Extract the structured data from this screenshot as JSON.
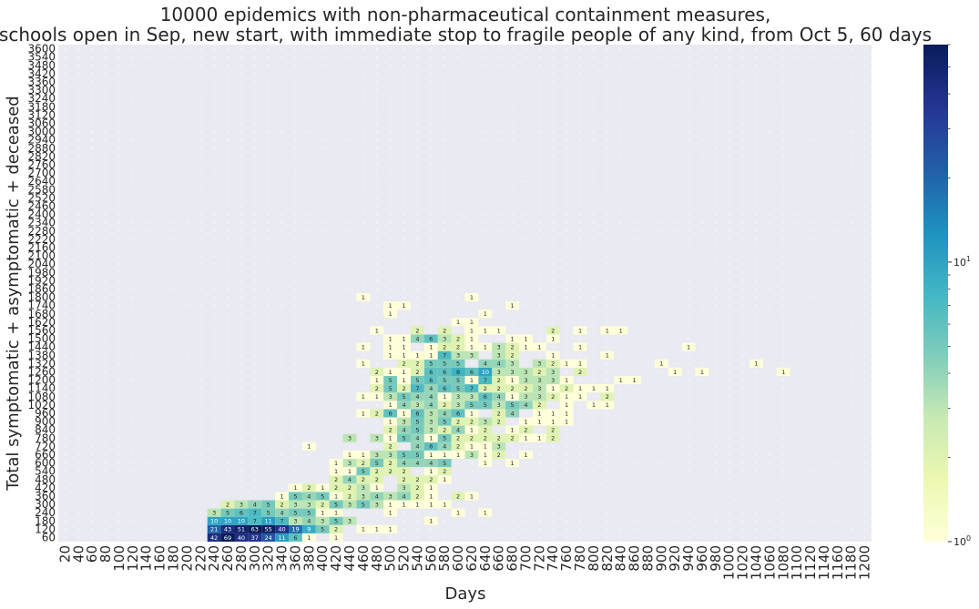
{
  "chart_data": {
    "type": "heatmap",
    "title_lines": [
      "10000 epidemics with non-pharmaceutical containment measures,",
      "schools open in Sep, new start, with immediate stop to fragile people of any kind, from Oct 5, 60 days"
    ],
    "xlabel": "Days",
    "ylabel": "Total symptomatic + asymptomatic + deceased",
    "x_start": 20,
    "x_step": 20,
    "x_count": 60,
    "y_start": 60,
    "y_step": 60,
    "y_count": 60,
    "colormap": "YlGnBu",
    "color_scale": "log",
    "colorbar_ticks": [
      {
        "base": "10",
        "exp": "0",
        "value": 1
      },
      {
        "base": "10",
        "exp": "1",
        "value": 10
      }
    ],
    "colorbar_max": 60,
    "background_color": "#eaeaf2",
    "cells": [
      [
        240,
        60,
        42
      ],
      [
        260,
        60,
        69
      ],
      [
        280,
        60,
        40
      ],
      [
        300,
        60,
        37
      ],
      [
        320,
        60,
        24
      ],
      [
        340,
        60,
        11
      ],
      [
        360,
        60,
        6
      ],
      [
        380,
        60,
        1
      ],
      [
        420,
        60,
        1
      ],
      [
        240,
        120,
        21
      ],
      [
        260,
        120,
        43
      ],
      [
        280,
        120,
        51
      ],
      [
        300,
        120,
        63
      ],
      [
        320,
        120,
        55
      ],
      [
        340,
        120,
        40
      ],
      [
        360,
        120,
        19
      ],
      [
        380,
        120,
        9
      ],
      [
        400,
        120,
        5
      ],
      [
        420,
        120,
        2
      ],
      [
        460,
        120,
        1
      ],
      [
        480,
        120,
        1
      ],
      [
        500,
        120,
        1
      ],
      [
        240,
        180,
        10
      ],
      [
        260,
        180,
        10
      ],
      [
        280,
        180,
        10
      ],
      [
        300,
        180,
        7
      ],
      [
        320,
        180,
        11
      ],
      [
        340,
        180,
        7
      ],
      [
        360,
        180,
        3
      ],
      [
        380,
        180,
        4
      ],
      [
        400,
        180,
        3
      ],
      [
        420,
        180,
        5
      ],
      [
        440,
        180,
        3
      ],
      [
        560,
        180,
        1
      ],
      [
        240,
        240,
        3
      ],
      [
        260,
        240,
        5
      ],
      [
        280,
        240,
        6
      ],
      [
        300,
        240,
        7
      ],
      [
        320,
        240,
        5
      ],
      [
        340,
        240,
        4
      ],
      [
        360,
        240,
        5
      ],
      [
        380,
        240,
        5
      ],
      [
        400,
        240,
        1
      ],
      [
        420,
        240,
        1
      ],
      [
        500,
        240,
        1
      ],
      [
        600,
        240,
        1
      ],
      [
        640,
        240,
        1
      ],
      [
        260,
        300,
        2
      ],
      [
        280,
        300,
        3
      ],
      [
        300,
        300,
        4
      ],
      [
        320,
        300,
        5
      ],
      [
        340,
        300,
        2
      ],
      [
        360,
        300,
        3
      ],
      [
        380,
        300,
        3
      ],
      [
        400,
        300,
        2
      ],
      [
        420,
        300,
        5
      ],
      [
        440,
        300,
        3
      ],
      [
        460,
        300,
        5
      ],
      [
        480,
        300,
        3
      ],
      [
        500,
        300,
        1
      ],
      [
        520,
        300,
        1
      ],
      [
        540,
        300,
        1
      ],
      [
        560,
        300,
        1
      ],
      [
        580,
        300,
        1
      ],
      [
        340,
        360,
        1
      ],
      [
        360,
        360,
        5
      ],
      [
        380,
        360,
        4
      ],
      [
        400,
        360,
        5
      ],
      [
        420,
        360,
        1
      ],
      [
        440,
        360,
        2
      ],
      [
        460,
        360,
        3
      ],
      [
        480,
        360,
        4
      ],
      [
        500,
        360,
        3
      ],
      [
        520,
        360,
        4
      ],
      [
        540,
        360,
        2
      ],
      [
        560,
        360,
        1
      ],
      [
        600,
        360,
        2
      ],
      [
        620,
        360,
        1
      ],
      [
        360,
        420,
        1
      ],
      [
        380,
        420,
        2
      ],
      [
        400,
        420,
        1
      ],
      [
        420,
        420,
        2
      ],
      [
        440,
        420,
        2
      ],
      [
        460,
        420,
        3
      ],
      [
        480,
        420,
        1
      ],
      [
        520,
        420,
        3
      ],
      [
        540,
        420,
        2
      ],
      [
        560,
        420,
        1
      ],
      [
        420,
        480,
        2
      ],
      [
        440,
        480,
        4
      ],
      [
        460,
        480,
        2
      ],
      [
        480,
        480,
        2
      ],
      [
        520,
        480,
        2
      ],
      [
        540,
        480,
        2
      ],
      [
        560,
        480,
        2
      ],
      [
        580,
        480,
        1
      ],
      [
        420,
        540,
        1
      ],
      [
        440,
        540,
        1
      ],
      [
        460,
        540,
        5
      ],
      [
        480,
        540,
        2
      ],
      [
        500,
        540,
        2
      ],
      [
        520,
        540,
        2
      ],
      [
        560,
        540,
        1
      ],
      [
        580,
        540,
        2
      ],
      [
        420,
        600,
        1
      ],
      [
        440,
        600,
        3
      ],
      [
        460,
        600,
        2
      ],
      [
        480,
        600,
        5
      ],
      [
        500,
        600,
        2
      ],
      [
        520,
        600,
        4
      ],
      [
        540,
        600,
        4
      ],
      [
        560,
        600,
        4
      ],
      [
        580,
        600,
        5
      ],
      [
        640,
        600,
        1
      ],
      [
        680,
        600,
        1
      ],
      [
        440,
        660,
        1
      ],
      [
        460,
        660,
        1
      ],
      [
        480,
        660,
        3
      ],
      [
        500,
        660,
        3
      ],
      [
        520,
        660,
        5
      ],
      [
        540,
        660,
        5
      ],
      [
        560,
        660,
        1
      ],
      [
        580,
        660,
        1
      ],
      [
        600,
        660,
        1
      ],
      [
        620,
        660,
        3
      ],
      [
        640,
        660,
        1
      ],
      [
        660,
        660,
        2
      ],
      [
        700,
        660,
        1
      ],
      [
        380,
        720,
        1
      ],
      [
        500,
        720,
        2
      ],
      [
        540,
        720,
        4
      ],
      [
        560,
        720,
        6
      ],
      [
        580,
        720,
        4
      ],
      [
        600,
        720,
        2
      ],
      [
        620,
        720,
        1
      ],
      [
        640,
        720,
        1
      ],
      [
        660,
        720,
        3
      ],
      [
        440,
        780,
        3
      ],
      [
        480,
        780,
        3
      ],
      [
        500,
        780,
        1
      ],
      [
        520,
        780,
        5
      ],
      [
        540,
        780,
        4
      ],
      [
        560,
        780,
        1
      ],
      [
        580,
        780,
        5
      ],
      [
        600,
        780,
        2
      ],
      [
        620,
        780,
        2
      ],
      [
        640,
        780,
        2
      ],
      [
        660,
        780,
        2
      ],
      [
        680,
        780,
        2
      ],
      [
        700,
        780,
        1
      ],
      [
        720,
        780,
        1
      ],
      [
        740,
        780,
        2
      ],
      [
        500,
        840,
        2
      ],
      [
        520,
        840,
        4
      ],
      [
        540,
        840,
        5
      ],
      [
        560,
        840,
        3
      ],
      [
        580,
        840,
        2
      ],
      [
        600,
        840,
        4
      ],
      [
        620,
        840,
        1
      ],
      [
        640,
        840,
        2
      ],
      [
        680,
        840,
        1
      ],
      [
        700,
        840,
        2
      ],
      [
        740,
        840,
        2
      ],
      [
        500,
        900,
        1
      ],
      [
        520,
        900,
        3
      ],
      [
        540,
        900,
        5
      ],
      [
        560,
        900,
        3
      ],
      [
        580,
        900,
        5
      ],
      [
        600,
        900,
        2
      ],
      [
        620,
        900,
        2
      ],
      [
        640,
        900,
        3
      ],
      [
        660,
        900,
        2
      ],
      [
        700,
        900,
        1
      ],
      [
        720,
        900,
        1
      ],
      [
        740,
        900,
        1
      ],
      [
        760,
        900,
        1
      ],
      [
        460,
        960,
        1
      ],
      [
        480,
        960,
        2
      ],
      [
        500,
        960,
        6
      ],
      [
        520,
        960,
        1
      ],
      [
        540,
        960,
        6
      ],
      [
        560,
        960,
        3
      ],
      [
        580,
        960,
        4
      ],
      [
        600,
        960,
        6
      ],
      [
        620,
        960,
        1
      ],
      [
        660,
        960,
        2
      ],
      [
        680,
        960,
        4
      ],
      [
        720,
        960,
        1
      ],
      [
        740,
        960,
        1
      ],
      [
        760,
        960,
        1
      ],
      [
        500,
        1020,
        1
      ],
      [
        520,
        1020,
        4
      ],
      [
        540,
        1020,
        3
      ],
      [
        560,
        1020,
        4
      ],
      [
        580,
        1020,
        2
      ],
      [
        600,
        1020,
        3
      ],
      [
        620,
        1020,
        5
      ],
      [
        640,
        1020,
        5
      ],
      [
        660,
        1020,
        3
      ],
      [
        680,
        1020,
        5
      ],
      [
        700,
        1020,
        4
      ],
      [
        720,
        1020,
        2
      ],
      [
        760,
        1020,
        1
      ],
      [
        800,
        1020,
        1
      ],
      [
        820,
        1020,
        1
      ],
      [
        460,
        1080,
        1
      ],
      [
        480,
        1080,
        1
      ],
      [
        500,
        1080,
        3
      ],
      [
        520,
        1080,
        5
      ],
      [
        540,
        1080,
        4
      ],
      [
        560,
        1080,
        4
      ],
      [
        580,
        1080,
        1
      ],
      [
        600,
        1080,
        3
      ],
      [
        620,
        1080,
        3
      ],
      [
        640,
        1080,
        6
      ],
      [
        660,
        1080,
        4
      ],
      [
        680,
        1080,
        1
      ],
      [
        700,
        1080,
        3
      ],
      [
        720,
        1080,
        3
      ],
      [
        740,
        1080,
        2
      ],
      [
        760,
        1080,
        1
      ],
      [
        780,
        1080,
        1
      ],
      [
        820,
        1080,
        2
      ],
      [
        480,
        1140,
        2
      ],
      [
        500,
        1140,
        5
      ],
      [
        520,
        1140,
        2
      ],
      [
        540,
        1140,
        7
      ],
      [
        560,
        1140,
        4
      ],
      [
        580,
        1140,
        6
      ],
      [
        600,
        1140,
        5
      ],
      [
        620,
        1140,
        7
      ],
      [
        640,
        1140,
        2
      ],
      [
        660,
        1140,
        2
      ],
      [
        680,
        1140,
        2
      ],
      [
        700,
        1140,
        2
      ],
      [
        720,
        1140,
        3
      ],
      [
        740,
        1140,
        1
      ],
      [
        760,
        1140,
        2
      ],
      [
        780,
        1140,
        1
      ],
      [
        800,
        1140,
        1
      ],
      [
        820,
        1140,
        1
      ],
      [
        480,
        1200,
        1
      ],
      [
        500,
        1200,
        5
      ],
      [
        520,
        1200,
        1
      ],
      [
        540,
        1200,
        5
      ],
      [
        560,
        1200,
        6
      ],
      [
        580,
        1200,
        5
      ],
      [
        600,
        1200,
        5
      ],
      [
        620,
        1200,
        1
      ],
      [
        640,
        1200,
        7
      ],
      [
        660,
        1200,
        2
      ],
      [
        680,
        1200,
        1
      ],
      [
        700,
        1200,
        3
      ],
      [
        720,
        1200,
        3
      ],
      [
        740,
        1200,
        3
      ],
      [
        760,
        1200,
        1
      ],
      [
        840,
        1200,
        1
      ],
      [
        860,
        1200,
        1
      ],
      [
        480,
        1260,
        2
      ],
      [
        500,
        1260,
        1
      ],
      [
        520,
        1260,
        1
      ],
      [
        540,
        1260,
        2
      ],
      [
        560,
        1260,
        6
      ],
      [
        580,
        1260,
        6
      ],
      [
        600,
        1260,
        8
      ],
      [
        620,
        1260,
        6
      ],
      [
        640,
        1260,
        10
      ],
      [
        660,
        1260,
        3
      ],
      [
        680,
        1260,
        3
      ],
      [
        700,
        1260,
        3
      ],
      [
        720,
        1260,
        2
      ],
      [
        740,
        1260,
        3
      ],
      [
        780,
        1260,
        2
      ],
      [
        920,
        1260,
        1
      ],
      [
        960,
        1260,
        1
      ],
      [
        1080,
        1260,
        1
      ],
      [
        460,
        1320,
        1
      ],
      [
        520,
        1320,
        2
      ],
      [
        540,
        1320,
        2
      ],
      [
        560,
        1320,
        5
      ],
      [
        580,
        1320,
        5
      ],
      [
        600,
        1320,
        5
      ],
      [
        640,
        1320,
        4
      ],
      [
        660,
        1320,
        4
      ],
      [
        680,
        1320,
        3
      ],
      [
        720,
        1320,
        3
      ],
      [
        740,
        1320,
        2
      ],
      [
        760,
        1320,
        1
      ],
      [
        780,
        1320,
        1
      ],
      [
        900,
        1320,
        1
      ],
      [
        1040,
        1320,
        1
      ],
      [
        500,
        1380,
        1
      ],
      [
        520,
        1380,
        1
      ],
      [
        540,
        1380,
        1
      ],
      [
        560,
        1380,
        1
      ],
      [
        580,
        1380,
        7
      ],
      [
        600,
        1380,
        3
      ],
      [
        620,
        1380,
        3
      ],
      [
        660,
        1380,
        3
      ],
      [
        680,
        1380,
        2
      ],
      [
        740,
        1380,
        1
      ],
      [
        820,
        1380,
        1
      ],
      [
        460,
        1440,
        1
      ],
      [
        500,
        1440,
        1
      ],
      [
        520,
        1440,
        1
      ],
      [
        560,
        1440,
        1
      ],
      [
        580,
        1440,
        2
      ],
      [
        600,
        1440,
        2
      ],
      [
        620,
        1440,
        1
      ],
      [
        640,
        1440,
        1
      ],
      [
        660,
        1440,
        3
      ],
      [
        680,
        1440,
        2
      ],
      [
        700,
        1440,
        1
      ],
      [
        720,
        1440,
        1
      ],
      [
        780,
        1440,
        1
      ],
      [
        940,
        1440,
        1
      ],
      [
        500,
        1500,
        1
      ],
      [
        520,
        1500,
        1
      ],
      [
        540,
        1500,
        4
      ],
      [
        560,
        1500,
        6
      ],
      [
        580,
        1500,
        3
      ],
      [
        600,
        1500,
        2
      ],
      [
        620,
        1500,
        1
      ],
      [
        680,
        1500,
        1
      ],
      [
        700,
        1500,
        1
      ],
      [
        740,
        1500,
        1
      ],
      [
        480,
        1560,
        1
      ],
      [
        540,
        1560,
        2
      ],
      [
        580,
        1560,
        2
      ],
      [
        620,
        1560,
        1
      ],
      [
        640,
        1560,
        1
      ],
      [
        660,
        1560,
        1
      ],
      [
        740,
        1560,
        2
      ],
      [
        780,
        1560,
        1
      ],
      [
        820,
        1560,
        1
      ],
      [
        840,
        1560,
        1
      ],
      [
        600,
        1620,
        1
      ],
      [
        620,
        1620,
        1
      ],
      [
        500,
        1680,
        1
      ],
      [
        640,
        1680,
        1
      ],
      [
        500,
        1740,
        1
      ],
      [
        520,
        1740,
        1
      ],
      [
        680,
        1740,
        1
      ],
      [
        460,
        1800,
        1
      ],
      [
        620,
        1800,
        1
      ]
    ]
  }
}
